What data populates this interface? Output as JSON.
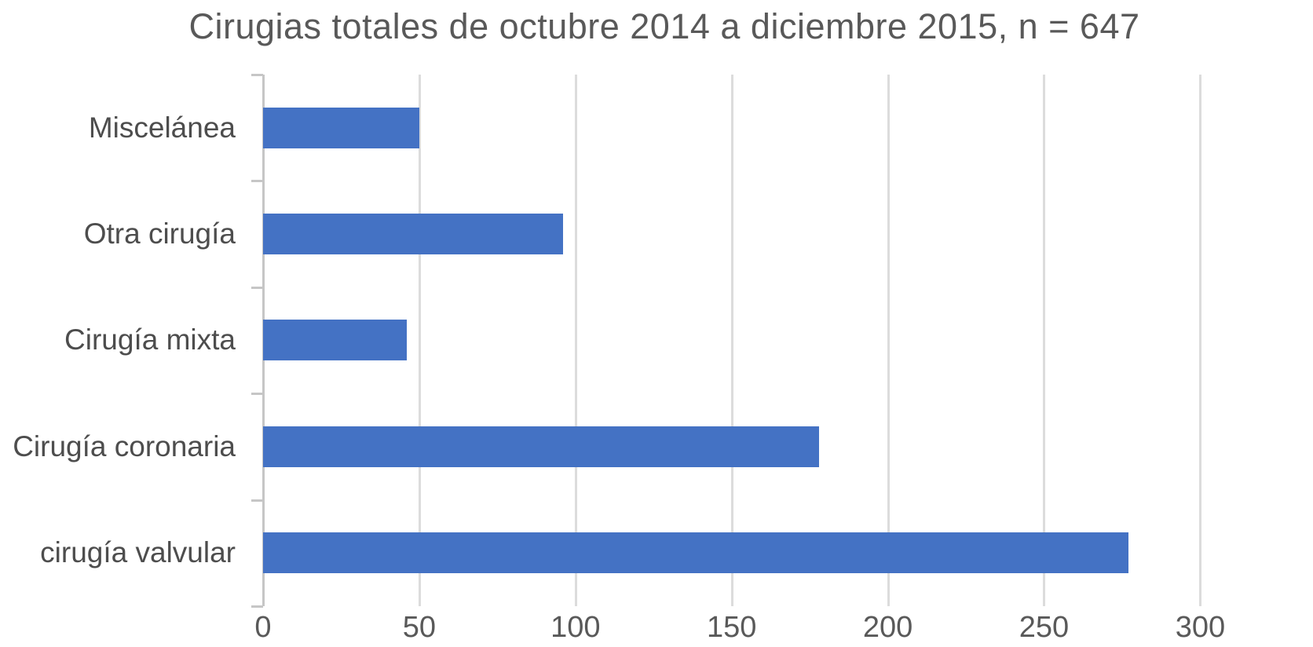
{
  "chart_data": {
    "type": "bar",
    "orientation": "horizontal",
    "title": "Cirugias totales de octubre 2014 a diciembre 2015, n = 647",
    "categories": [
      "Miscelánea",
      "Otra cirugía",
      "Cirugía mixta",
      "Cirugía coronaria",
      "cirugía valvular"
    ],
    "values": [
      50,
      96,
      46,
      178,
      277
    ],
    "x_ticks": [
      0,
      50,
      100,
      150,
      200,
      250,
      300
    ],
    "xlim": [
      0,
      318
    ],
    "xlabel": "",
    "ylabel": "",
    "grid": "vertical-gridlines",
    "legend": "none",
    "colors": {
      "bar": "#4472C4",
      "title_text": "#595959",
      "category_text": "#4d4d4d",
      "tick_text": "#595959",
      "gridline": "#dcdcdc",
      "axis_line": "#c6c6c6",
      "background": "#ffffff"
    }
  }
}
